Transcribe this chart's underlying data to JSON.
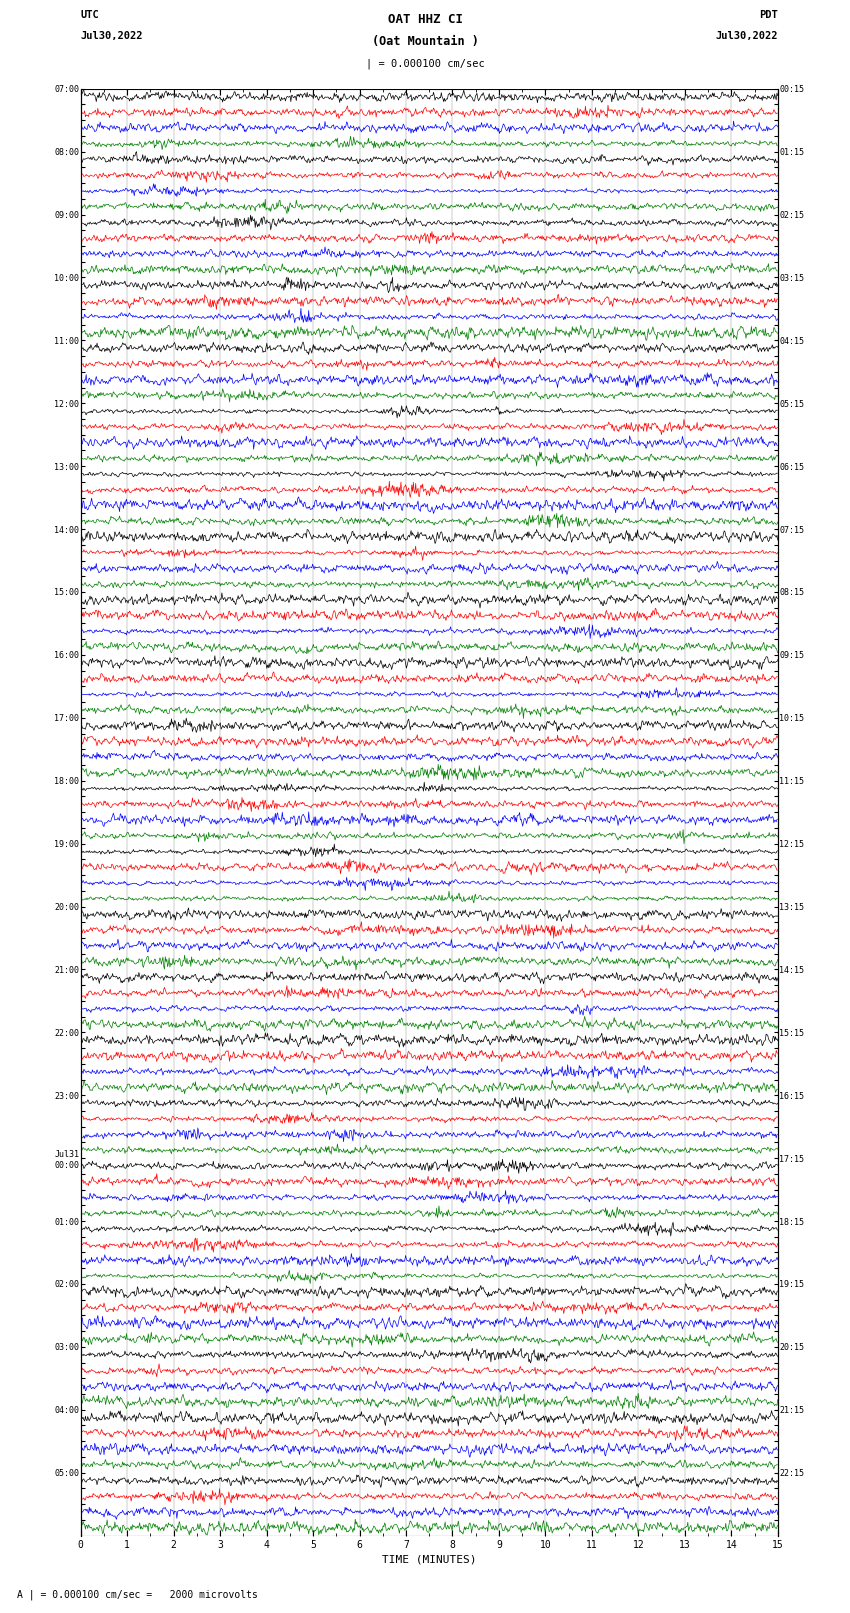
{
  "title_line1": "OAT HHZ CI",
  "title_line2": "(Oat Mountain )",
  "scale_label": "| = 0.000100 cm/sec",
  "bottom_label": "A | = 0.000100 cm/sec =   2000 microvolts",
  "xlabel": "TIME (MINUTES)",
  "left_header": "UTC",
  "left_date": "Jul30,2022",
  "right_header": "PDT",
  "right_date": "Jul30,2022",
  "bg_color": "#ffffff",
  "trace_colors": [
    "#000000",
    "#ff0000",
    "#0000ff",
    "#008000"
  ],
  "left_times_utc": [
    "07:00",
    "",
    "",
    "",
    "08:00",
    "",
    "",
    "",
    "09:00",
    "",
    "",
    "",
    "10:00",
    "",
    "",
    "",
    "11:00",
    "",
    "",
    "",
    "12:00",
    "",
    "",
    "",
    "13:00",
    "",
    "",
    "",
    "14:00",
    "",
    "",
    "",
    "15:00",
    "",
    "",
    "",
    "16:00",
    "",
    "",
    "",
    "17:00",
    "",
    "",
    "",
    "18:00",
    "",
    "",
    "",
    "19:00",
    "",
    "",
    "",
    "20:00",
    "",
    "",
    "",
    "21:00",
    "",
    "",
    "",
    "22:00",
    "",
    "",
    "",
    "23:00",
    "",
    "",
    "",
    "Jul31\n00:00",
    "",
    "",
    "",
    "01:00",
    "",
    "",
    "",
    "02:00",
    "",
    "",
    "",
    "03:00",
    "",
    "",
    "",
    "04:00",
    "",
    "",
    "",
    "05:00",
    "",
    "",
    ""
  ],
  "right_times_pdt": [
    "00:15",
    "",
    "",
    "",
    "01:15",
    "",
    "",
    "",
    "02:15",
    "",
    "",
    "",
    "03:15",
    "",
    "",
    "",
    "04:15",
    "",
    "",
    "",
    "05:15",
    "",
    "",
    "",
    "06:15",
    "",
    "",
    "",
    "07:15",
    "",
    "",
    "",
    "08:15",
    "",
    "",
    "",
    "09:15",
    "",
    "",
    "",
    "10:15",
    "",
    "",
    "",
    "11:15",
    "",
    "",
    "",
    "12:15",
    "",
    "",
    "",
    "13:15",
    "",
    "",
    "",
    "14:15",
    "",
    "",
    "",
    "15:15",
    "",
    "",
    "",
    "16:15",
    "",
    "",
    "",
    "17:15",
    "",
    "",
    "",
    "18:15",
    "",
    "",
    "",
    "19:15",
    "",
    "",
    "",
    "20:15",
    "",
    "",
    "",
    "21:15",
    "",
    "",
    "",
    "22:15",
    "",
    "",
    ""
  ],
  "n_hour_groups": 23,
  "traces_per_group": 4,
  "time_minutes": 15,
  "samples_per_trace": 900,
  "fig_width": 8.5,
  "fig_height": 16.13,
  "dpi": 100
}
